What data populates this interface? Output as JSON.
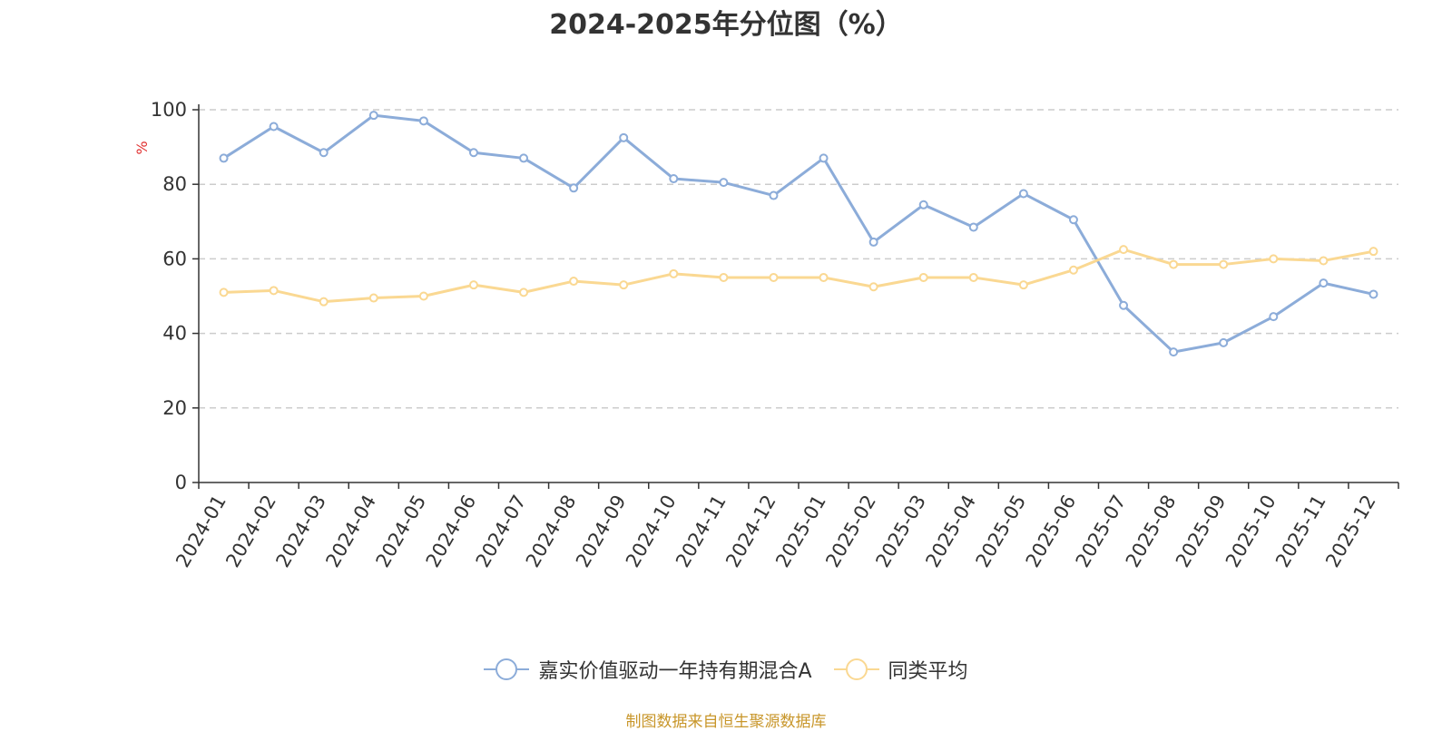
{
  "chart_data": {
    "type": "line",
    "title": "2024-2025年分位图（%）",
    "ylabel": "%",
    "xlabel": "",
    "ylim": [
      0,
      100
    ],
    "yticks": [
      0,
      20,
      40,
      60,
      80,
      100
    ],
    "grid": true,
    "legend_position": "bottom",
    "categories": [
      "2024-01",
      "2024-02",
      "2024-03",
      "2024-04",
      "2024-05",
      "2024-06",
      "2024-07",
      "2024-08",
      "2024-09",
      "2024-10",
      "2024-11",
      "2024-12",
      "2025-01",
      "2025-02",
      "2025-03",
      "2025-04",
      "2025-05",
      "2025-06",
      "2025-07",
      "2025-08",
      "2025-09",
      "2025-10",
      "2025-11",
      "2025-12"
    ],
    "series": [
      {
        "name": "嘉实价值驱动一年持有期混合A",
        "color": "#8cacd9",
        "values": [
          87,
          95.5,
          88.5,
          98.5,
          97,
          88.5,
          87,
          79,
          92.5,
          81.5,
          80.5,
          77,
          87,
          64.5,
          74.5,
          68.5,
          77.5,
          70.5,
          47.5,
          35,
          37.5,
          44.5,
          53.5,
          50.5
        ]
      },
      {
        "name": "同类平均",
        "color": "#fad892",
        "values": [
          51,
          51.5,
          48.5,
          49.5,
          50,
          53,
          51,
          54,
          53,
          56,
          55,
          55,
          55,
          52.5,
          55,
          55,
          53,
          57,
          62.5,
          58.5,
          58.5,
          60,
          59.5,
          62
        ]
      }
    ]
  },
  "source_note": "制图数据来自恒生聚源数据库"
}
